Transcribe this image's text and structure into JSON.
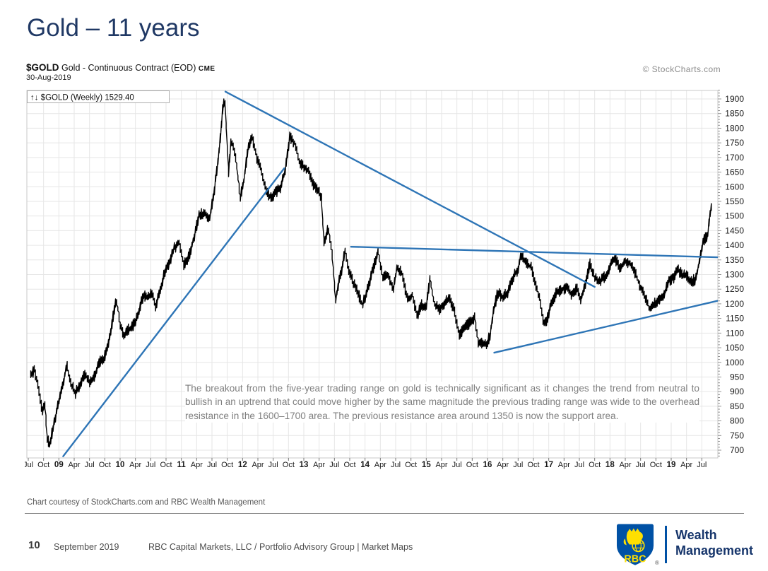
{
  "slide": {
    "title": "Gold – 11 years",
    "footer": {
      "credit": "Chart courtesy of StockCharts.com and RBC Wealth Management",
      "page_number": "10",
      "date": "September 2019",
      "source_line": "RBC Capital Markets, LLC / Portfolio Advisory Group  |  Market Maps",
      "logo": {
        "brand": "RBC",
        "unit_line1": "Wealth",
        "unit_line2": "Management",
        "registered_mark": "®"
      }
    }
  },
  "chart": {
    "symbol": "$GOLD",
    "description": "Gold - Continuous Contract (EOD)",
    "exchange": "CME",
    "date": "30-Aug-2019",
    "watermark": "© StockCharts.com",
    "legend_arrows": "↑↓",
    "legend": "$GOLD (Weekly) 1529.40",
    "annotation": "The breakout from the five-year trading range on gold is technically significant as it changes the trend from neutral  to bullish in an uptrend that could move higher by the same magnitude the previous trading range was wide to the overhead resistance in the 1600–1700 area. The previous resistance area around 1350 is now the support area."
  },
  "chart_data": {
    "type": "line",
    "title": "$GOLD Gold - Continuous Contract (EOD) CME, Weekly, 30-Aug-2019",
    "xlabel": "",
    "ylabel": "",
    "grid": true,
    "x_range": [
      2008.5,
      2019.75
    ],
    "y_range": [
      673,
      1932
    ],
    "y_ticks": [
      1900,
      1850,
      1800,
      1750,
      1700,
      1650,
      1600,
      1550,
      1500,
      1450,
      1400,
      1350,
      1300,
      1250,
      1200,
      1150,
      1100,
      1050,
      1000,
      950,
      900,
      850,
      800,
      750,
      700
    ],
    "x_tick_start": 2008.5,
    "x_tick_step": 0.25,
    "x_tick_labels": [
      "Jul",
      "Oct",
      "09",
      "Apr",
      "Jul",
      "Oct",
      "10",
      "Apr",
      "Jul",
      "Oct",
      "11",
      "Apr",
      "Jul",
      "Oct",
      "12",
      "Apr",
      "Jul",
      "Oct",
      "13",
      "Apr",
      "Jul",
      "Oct",
      "14",
      "Apr",
      "Jul",
      "Oct",
      "15",
      "Apr",
      "Jul",
      "Oct",
      "16",
      "Apr",
      "Jul",
      "Oct",
      "17",
      "Apr",
      "Jul",
      "Oct",
      "18",
      "Apr",
      "Jul",
      "Oct",
      "19",
      "Apr",
      "Jul"
    ],
    "last_price": 1529.4,
    "colors": {
      "price": "#000000",
      "trend": "#2E75B6",
      "grid": "#e6e6e6",
      "axis": "#999999",
      "tick_text": "#1a1a1a"
    },
    "series": {
      "name": "$GOLD weekly",
      "points": [
        [
          2008.54,
          955
        ],
        [
          2008.6,
          975
        ],
        [
          2008.67,
          905
        ],
        [
          2008.73,
          830
        ],
        [
          2008.77,
          860
        ],
        [
          2008.81,
          740
        ],
        [
          2008.85,
          720
        ],
        [
          2008.9,
          770
        ],
        [
          2008.96,
          830
        ],
        [
          2009.02,
          885
        ],
        [
          2009.08,
          940
        ],
        [
          2009.13,
          995
        ],
        [
          2009.19,
          930
        ],
        [
          2009.27,
          895
        ],
        [
          2009.35,
          925
        ],
        [
          2009.42,
          960
        ],
        [
          2009.5,
          935
        ],
        [
          2009.58,
          950
        ],
        [
          2009.65,
          1000
        ],
        [
          2009.73,
          1010
        ],
        [
          2009.81,
          1060
        ],
        [
          2009.88,
          1150
        ],
        [
          2009.94,
          1215
        ],
        [
          2010.0,
          1130
        ],
        [
          2010.06,
          1085
        ],
        [
          2010.13,
          1110
        ],
        [
          2010.21,
          1125
        ],
        [
          2010.29,
          1160
        ],
        [
          2010.38,
          1230
        ],
        [
          2010.46,
          1220
        ],
        [
          2010.52,
          1240
        ],
        [
          2010.58,
          1190
        ],
        [
          2010.65,
          1245
        ],
        [
          2010.73,
          1310
        ],
        [
          2010.81,
          1345
        ],
        [
          2010.88,
          1390
        ],
        [
          2010.96,
          1410
        ],
        [
          2011.04,
          1330
        ],
        [
          2011.13,
          1365
        ],
        [
          2011.21,
          1430
        ],
        [
          2011.29,
          1505
        ],
        [
          2011.38,
          1510
        ],
        [
          2011.46,
          1490
        ],
        [
          2011.54,
          1590
        ],
        [
          2011.63,
          1750
        ],
        [
          2011.68,
          1880
        ],
        [
          2011.71,
          1900
        ],
        [
          2011.74,
          1780
        ],
        [
          2011.77,
          1650
        ],
        [
          2011.81,
          1750
        ],
        [
          2011.85,
          1740
        ],
        [
          2011.9,
          1680
        ],
        [
          2011.96,
          1560
        ],
        [
          2012.02,
          1620
        ],
        [
          2012.08,
          1720
        ],
        [
          2012.15,
          1775
        ],
        [
          2012.23,
          1700
        ],
        [
          2012.31,
          1650
        ],
        [
          2012.38,
          1590
        ],
        [
          2012.46,
          1560
        ],
        [
          2012.54,
          1580
        ],
        [
          2012.62,
          1600
        ],
        [
          2012.69,
          1650
        ],
        [
          2012.77,
          1770
        ],
        [
          2012.85,
          1750
        ],
        [
          2012.92,
          1690
        ],
        [
          2013.0,
          1665
        ],
        [
          2013.08,
          1655
        ],
        [
          2013.15,
          1610
        ],
        [
          2013.23,
          1590
        ],
        [
          2013.29,
          1560
        ],
        [
          2013.33,
          1400
        ],
        [
          2013.4,
          1460
        ],
        [
          2013.46,
          1380
        ],
        [
          2013.52,
          1210
        ],
        [
          2013.58,
          1290
        ],
        [
          2013.63,
          1320
        ],
        [
          2013.67,
          1390
        ],
        [
          2013.73,
          1315
        ],
        [
          2013.81,
          1270
        ],
        [
          2013.88,
          1240
        ],
        [
          2013.96,
          1195
        ],
        [
          2014.04,
          1250
        ],
        [
          2014.13,
          1320
        ],
        [
          2014.21,
          1380
        ],
        [
          2014.29,
          1290
        ],
        [
          2014.38,
          1300
        ],
        [
          2014.46,
          1250
        ],
        [
          2014.52,
          1320
        ],
        [
          2014.6,
          1305
        ],
        [
          2014.69,
          1215
        ],
        [
          2014.77,
          1230
        ],
        [
          2014.85,
          1160
        ],
        [
          2014.92,
          1195
        ],
        [
          2015.0,
          1185
        ],
        [
          2015.06,
          1290
        ],
        [
          2015.13,
          1200
        ],
        [
          2015.21,
          1180
        ],
        [
          2015.29,
          1200
        ],
        [
          2015.38,
          1220
        ],
        [
          2015.46,
          1175
        ],
        [
          2015.54,
          1090
        ],
        [
          2015.63,
          1120
        ],
        [
          2015.71,
          1135
        ],
        [
          2015.79,
          1155
        ],
        [
          2015.85,
          1065
        ],
        [
          2015.92,
          1070
        ],
        [
          2015.98,
          1060
        ],
        [
          2016.04,
          1090
        ],
        [
          2016.1,
          1180
        ],
        [
          2016.17,
          1240
        ],
        [
          2016.25,
          1220
        ],
        [
          2016.33,
          1240
        ],
        [
          2016.42,
          1290
        ],
        [
          2016.5,
          1320
        ],
        [
          2016.54,
          1365
        ],
        [
          2016.63,
          1340
        ],
        [
          2016.71,
          1325
        ],
        [
          2016.79,
          1265
        ],
        [
          2016.85,
          1220
        ],
        [
          2016.92,
          1130
        ],
        [
          2016.98,
          1150
        ],
        [
          2017.04,
          1200
        ],
        [
          2017.13,
          1240
        ],
        [
          2017.21,
          1250
        ],
        [
          2017.29,
          1255
        ],
        [
          2017.38,
          1230
        ],
        [
          2017.46,
          1255
        ],
        [
          2017.52,
          1215
        ],
        [
          2017.6,
          1265
        ],
        [
          2017.67,
          1340
        ],
        [
          2017.75,
          1290
        ],
        [
          2017.83,
          1275
        ],
        [
          2017.9,
          1290
        ],
        [
          2017.96,
          1300
        ],
        [
          2018.02,
          1340
        ],
        [
          2018.08,
          1355
        ],
        [
          2018.17,
          1320
        ],
        [
          2018.25,
          1345
        ],
        [
          2018.33,
          1340
        ],
        [
          2018.42,
          1300
        ],
        [
          2018.5,
          1255
        ],
        [
          2018.58,
          1220
        ],
        [
          2018.65,
          1180
        ],
        [
          2018.73,
          1200
        ],
        [
          2018.81,
          1215
        ],
        [
          2018.88,
          1225
        ],
        [
          2018.96,
          1280
        ],
        [
          2019.04,
          1290
        ],
        [
          2019.1,
          1320
        ],
        [
          2019.17,
          1300
        ],
        [
          2019.25,
          1295
        ],
        [
          2019.33,
          1275
        ],
        [
          2019.4,
          1285
        ],
        [
          2019.46,
          1345
        ],
        [
          2019.52,
          1410
        ],
        [
          2019.56,
          1425
        ],
        [
          2019.6,
          1440
        ],
        [
          2019.63,
          1500
        ],
        [
          2019.66,
          1529.4
        ]
      ]
    },
    "trend_lines": [
      {
        "name": "uptrend-2009-2012",
        "from": [
          2009.07,
          679
        ],
        "to": [
          2012.68,
          1663
        ]
      },
      {
        "name": "downtrend-2011-2017",
        "from": [
          2011.72,
          1925
        ],
        "to": [
          2017.75,
          1258
        ]
      },
      {
        "name": "resistance-now-support",
        "from": [
          2013.77,
          1395
        ],
        "to": [
          2019.75,
          1359
        ]
      },
      {
        "name": "rising-support-2016-2019",
        "from": [
          2016.11,
          1033
        ],
        "to": [
          2019.75,
          1210
        ]
      }
    ]
  }
}
